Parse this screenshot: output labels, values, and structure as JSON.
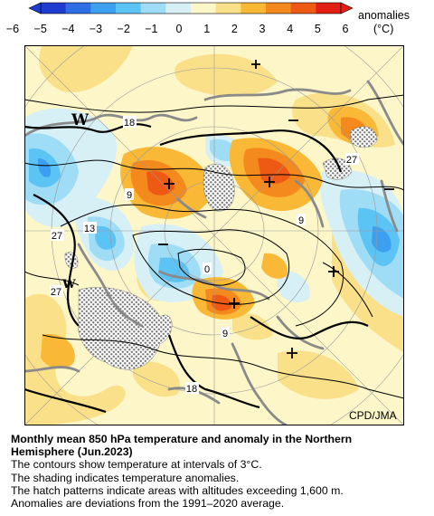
{
  "colorbar": {
    "ticks": [
      "−6",
      "−5",
      "−4",
      "−3",
      "−2",
      "−1",
      "0",
      "1",
      "2",
      "3",
      "4",
      "5",
      "6"
    ],
    "label_line1": "anomalies",
    "label_line2": "(°C)",
    "colors": [
      "#1e3ccf",
      "#2d6ee6",
      "#3c9ff0",
      "#5cc3f5",
      "#9fdcf5",
      "#d6f0f6",
      "#fdf6c8",
      "#fbe08a",
      "#f9b937",
      "#f48a1e",
      "#ee5a14",
      "#e21f12"
    ]
  },
  "map": {
    "contour_labels": [
      "18",
      "9",
      "13",
      "27",
      "27",
      "0",
      "9",
      "9",
      "27",
      "18"
    ],
    "symbols": [
      "W",
      "W"
    ],
    "plus_signs": 6,
    "minus_signs": 3
  },
  "credit": "CPD/JMA",
  "caption": {
    "title_line1": "Monthly mean 850 hPa temperature and anomaly in the Northern",
    "title_line2": "Hemisphere (Jun.2023)",
    "line1": "The contours show temperature at intervals of 3°C.",
    "line2": "The shading indicates temperature anomalies.",
    "line3": "The hatch patterns indicate areas with altitudes exceeding 1,600 m.",
    "line4": "Anomalies are deviations from the 1991–2020 average."
  }
}
